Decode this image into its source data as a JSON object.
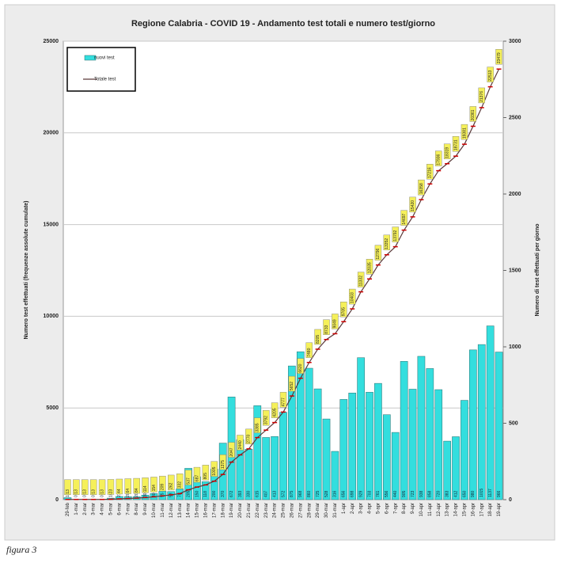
{
  "chart_data": {
    "type": "bar",
    "title": "Regione Calabria - COVID 19 - Andamento test totali e numero test/giorno",
    "y_label": "Numero test effettuati (frequenze assolute cumulate)",
    "y2_label": "Numero di test effettuati per giorno",
    "caption": "figura 3",
    "categories": [
      "29-feb",
      "1-mar",
      "2-mar",
      "3-mar",
      "4-mar",
      "5-mar",
      "6-mar",
      "7-mar",
      "8-mar",
      "9-mar",
      "10-mar",
      "11-mar",
      "12-mar",
      "13-mar",
      "14-mar",
      "15-mar",
      "16-mar",
      "17-mar",
      "18-mar",
      "19-mar",
      "20-mar",
      "21-mar",
      "22-mar",
      "23-mar",
      "24-mar",
      "25-mar",
      "26-mar",
      "27-mar",
      "28-mar",
      "29-mar",
      "30-mar",
      "31-mar",
      "1-apr",
      "2-apr",
      "3-apr",
      "4-apr",
      "5-apr",
      "6-apr",
      "7-apr",
      "8-apr",
      "9-apr",
      "10-apr",
      "11-apr",
      "12-apr",
      "13-apr",
      "14-apr",
      "15-apr",
      "16-apr",
      "17-apr",
      "18-apr",
      "19-apr"
    ],
    "series": [
      {
        "name": "nuovi test",
        "type": "bar",
        "axis": "y2",
        "color": "#33dede",
        "values": [
          13,
          0,
          0,
          0,
          0,
          10,
          21,
          20,
          20,
          30,
          40,
          55,
          53,
          70,
          205,
          150,
          118,
          200,
          370,
          672,
          393,
          330,
          615,
          407,
          413,
          572,
          875,
          968,
          860,
          725,
          528,
          316,
          656,
          698,
          929,
          703,
          761,
          556,
          440,
          905,
          723,
          938,
          858,
          720,
          383,
          412,
          650,
          980,
          1015,
          1137,
          966
        ]
      },
      {
        "name": "Totale test",
        "type": "line",
        "axis": "y",
        "color": "#5a3a3a",
        "marker_color": "#cc0000",
        "values": [
          13,
          13,
          13,
          13,
          13,
          23,
          44,
          64,
          84,
          114,
          154,
          209,
          262,
          332,
          537,
          687,
          805,
          1005,
          1375,
          2047,
          2440,
          2770,
          3385,
          3792,
          4205,
          4777,
          5652,
          6620,
          7480,
          8205,
          8733,
          9049,
          9705,
          10403,
          11332,
          12035,
          12796,
          13352,
          13792,
          14697,
          15420,
          16358,
          17216,
          17936,
          18319,
          18731,
          19381,
          20361,
          21376,
          22513,
          23479
        ]
      }
    ],
    "ylim": [
      0,
      25000
    ],
    "yticks": [
      0,
      5000,
      10000,
      15000,
      20000,
      25000
    ],
    "y2lim": [
      0,
      3000
    ],
    "y2ticks": [
      0,
      500,
      1000,
      1500,
      2000,
      2500,
      3000
    ],
    "grid": true,
    "legend": "upper left"
  }
}
